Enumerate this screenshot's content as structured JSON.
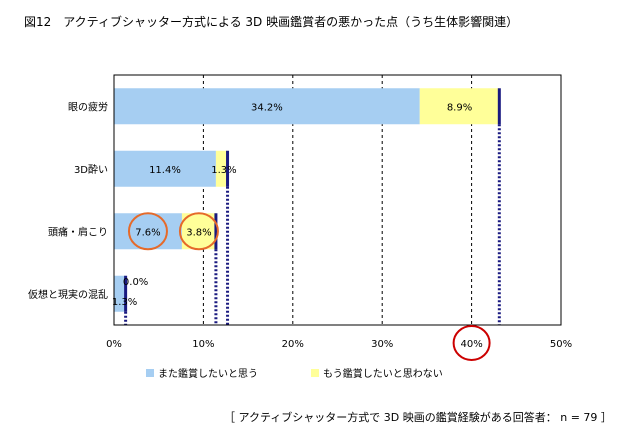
{
  "title": "図12　アクティブシャッター方式による 3D 映画鑑賞者の悪かった点（うち生体影響関連）",
  "footnote": "［ アクティブシャッター方式で 3D 映画の鑑賞経験がある回答者： n = 79 ］",
  "colors": {
    "series_blue": "#a6cef2",
    "series_yellow": "#ffff99",
    "total_line": "#1a1a80",
    "highlight_circle_red": "#cc0000",
    "highlight_circle_orange": "#e56a2a"
  },
  "chart_data": {
    "type": "bar",
    "orientation": "horizontal",
    "stacked": true,
    "categories": [
      "眼の疲労",
      "3D酔い",
      "頭痛・肩こり",
      "仮想と現実の混乱"
    ],
    "series": [
      {
        "name": "また鑑賞したいと思う",
        "values": [
          34.2,
          11.4,
          7.6,
          1.3
        ],
        "labels": [
          "34.2%",
          "11.4%",
          "7.6%",
          "1.3%"
        ]
      },
      {
        "name": "もう鑑賞したいと思わない",
        "values": [
          8.9,
          1.3,
          3.8,
          0.0
        ],
        "labels": [
          "8.9%",
          "1.3%",
          "3.8%",
          "0.0%"
        ]
      }
    ],
    "x_ticks": [
      "0%",
      "10%",
      "20%",
      "30%",
      "40%",
      "50%"
    ],
    "xlim": [
      0,
      50
    ],
    "grid": "vertical-dashed",
    "legend_position": "bottom",
    "annotations": {
      "circled_tick": "40%",
      "circled_labels": [
        "7.6%",
        "3.8%"
      ]
    }
  }
}
